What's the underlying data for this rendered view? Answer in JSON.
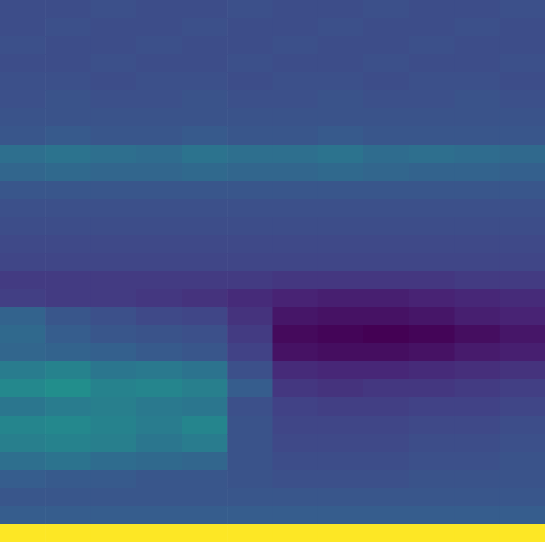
{
  "chart_data": {
    "type": "heatmap",
    "tick_labels": false,
    "cells": [
      [
        2.7,
        2.7,
        2.8,
        2.7,
        2.7,
        2.8,
        2.7,
        2.7,
        2.8,
        2.7,
        2.7,
        2.8
      ],
      [
        2.7,
        2.8,
        2.7,
        2.7,
        2.8,
        2.7,
        2.7,
        2.8,
        2.7,
        2.7,
        2.8,
        2.7
      ],
      [
        2.8,
        2.7,
        2.7,
        2.8,
        2.7,
        2.7,
        2.8,
        2.7,
        2.7,
        2.8,
        2.7,
        2.7
      ],
      [
        2.7,
        2.7,
        2.8,
        2.7,
        2.7,
        2.8,
        2.7,
        2.7,
        2.8,
        2.7,
        2.7,
        2.8
      ],
      [
        2.8,
        2.8,
        2.7,
        2.8,
        2.8,
        2.7,
        2.8,
        2.8,
        2.7,
        2.8,
        2.8,
        2.7
      ],
      [
        2.8,
        2.9,
        2.8,
        2.8,
        2.9,
        2.8,
        2.8,
        2.9,
        2.8,
        2.8,
        2.9,
        2.8
      ],
      [
        2.9,
        2.9,
        2.9,
        2.9,
        2.9,
        2.9,
        2.9,
        2.9,
        2.9,
        2.9,
        2.9,
        2.9
      ],
      [
        3.0,
        3.1,
        3.0,
        3.0,
        3.1,
        3.0,
        3.0,
        3.1,
        3.0,
        3.0,
        3.0,
        3.0
      ],
      [
        3.8,
        3.9,
        3.8,
        3.7,
        3.9,
        3.8,
        3.8,
        3.9,
        3.7,
        3.8,
        3.7,
        3.6
      ],
      [
        3.5,
        3.6,
        3.5,
        3.5,
        3.6,
        3.5,
        3.5,
        3.6,
        3.5,
        3.4,
        3.4,
        3.3
      ],
      [
        3.0,
        3.0,
        3.0,
        3.0,
        3.0,
        3.0,
        3.0,
        3.0,
        3.0,
        3.0,
        3.0,
        3.0
      ],
      [
        2.8,
        2.8,
        2.8,
        2.8,
        2.8,
        2.8,
        2.8,
        2.8,
        2.8,
        2.8,
        2.8,
        2.8
      ],
      [
        2.7,
        2.7,
        2.7,
        2.7,
        2.7,
        2.7,
        2.7,
        2.7,
        2.7,
        2.7,
        2.7,
        2.7
      ],
      [
        2.6,
        2.6,
        2.6,
        2.6,
        2.6,
        2.6,
        2.6,
        2.6,
        2.6,
        2.6,
        2.6,
        2.6
      ],
      [
        2.5,
        2.5,
        2.5,
        2.5,
        2.5,
        2.5,
        2.5,
        2.5,
        2.5,
        2.5,
        2.5,
        2.5
      ],
      [
        2.2,
        2.2,
        2.2,
        2.2,
        2.2,
        2.2,
        2.1,
        2.1,
        2.1,
        2.1,
        2.2,
        2.2
      ],
      [
        2.3,
        2.2,
        2.2,
        2.1,
        2.0,
        1.8,
        1.6,
        1.5,
        1.5,
        1.6,
        1.7,
        1.8
      ],
      [
        3.4,
        3.0,
        2.8,
        2.6,
        2.5,
        2.0,
        1.3,
        1.2,
        1.2,
        1.3,
        1.5,
        1.6
      ],
      [
        3.6,
        3.2,
        3.0,
        2.9,
        2.8,
        2.2,
        1.0,
        0.9,
        0.8,
        0.9,
        1.1,
        1.3
      ],
      [
        3.5,
        3.4,
        3.3,
        3.1,
        3.0,
        2.4,
        1.2,
        1.1,
        1.1,
        1.2,
        1.4,
        1.5
      ],
      [
        4.2,
        4.4,
        4.0,
        4.1,
        3.9,
        2.8,
        1.8,
        1.7,
        1.7,
        1.8,
        1.9,
        2.0
      ],
      [
        4.6,
        4.8,
        4.4,
        4.5,
        4.3,
        3.2,
        2.1,
        2.0,
        2.1,
        2.1,
        2.2,
        2.3
      ],
      [
        4.0,
        4.2,
        4.3,
        4.1,
        4.0,
        2.8,
        2.4,
        2.3,
        2.3,
        2.4,
        2.4,
        2.5
      ],
      [
        4.5,
        4.6,
        4.4,
        4.2,
        4.5,
        2.9,
        2.5,
        2.5,
        2.5,
        2.6,
        2.6,
        2.7
      ],
      [
        4.3,
        4.4,
        4.3,
        4.0,
        4.2,
        2.9,
        2.6,
        2.6,
        2.6,
        2.7,
        2.7,
        2.8
      ],
      [
        3.8,
        3.9,
        3.7,
        3.6,
        3.5,
        2.9,
        2.7,
        2.7,
        2.7,
        2.8,
        2.8,
        2.9
      ],
      [
        3.2,
        3.1,
        3.1,
        3.0,
        3.0,
        2.9,
        2.8,
        2.8,
        2.8,
        2.9,
        2.9,
        2.9
      ],
      [
        3.0,
        3.0,
        3.0,
        3.0,
        3.0,
        3.0,
        3.0,
        3.0,
        3.0,
        3.0,
        3.0,
        3.0
      ],
      [
        3.2,
        3.2,
        3.2,
        3.2,
        3.2,
        3.2,
        3.2,
        3.2,
        3.2,
        3.2,
        3.2,
        3.2
      ],
      [
        9.0,
        9.0,
        9.0,
        9.0,
        9.0,
        9.0,
        9.0,
        9.0,
        9.0,
        9.0,
        9.0,
        9.0
      ]
    ]
  }
}
